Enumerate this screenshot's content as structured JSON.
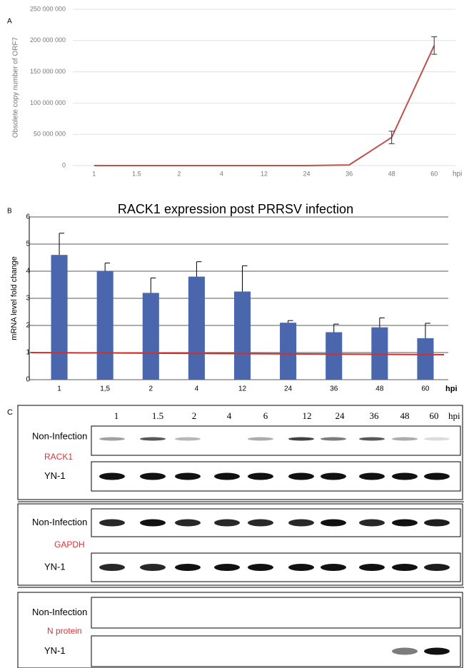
{
  "chart_data": [
    {
      "type": "line",
      "panel_label": "A",
      "y_label": "Obsolete copy number of ORF7",
      "x_label": "hpi",
      "color": "#c0504d",
      "categories": [
        "1",
        "1.5",
        "2",
        "4",
        "12",
        "24",
        "36",
        "48",
        "60"
      ],
      "values": [
        0,
        0,
        0,
        0,
        0,
        0,
        1000000,
        45000000,
        192000000
      ],
      "errors": [
        0,
        0,
        0,
        0,
        0,
        0,
        0,
        10000000,
        14000000
      ],
      "ylim": [
        0,
        250000000
      ],
      "yticks": [
        0,
        {
          "value": 50000000,
          "label": "50 000 000"
        },
        {
          "value": 100000000,
          "label": "100 000 000"
        },
        {
          "value": 150000000,
          "label": "150 000 000"
        },
        {
          "value": 200000000,
          "label": "200 000 000"
        },
        {
          "value": 250000000,
          "label": "250 000 000"
        }
      ],
      "grid": true
    },
    {
      "type": "bar",
      "panel_label": "B",
      "title": "RACK1 expression post PRRSV infection",
      "y_label": "mRNA  level  fold  change",
      "x_label": "hpi",
      "color": "#4a66ac",
      "categories": [
        "1",
        "1,5",
        "2",
        "4",
        "12",
        "24",
        "36",
        "48",
        "60"
      ],
      "values": [
        4.6,
        4.0,
        3.2,
        3.8,
        3.25,
        2.1,
        1.75,
        1.93,
        1.53
      ],
      "errors": [
        0.8,
        0.3,
        0.55,
        0.55,
        0.95,
        0.08,
        0.3,
        0.35,
        0.55
      ],
      "reference_line": 1,
      "reference_color": "#d03030",
      "ylim": [
        0,
        6
      ],
      "yticks": [
        0,
        1,
        2,
        3,
        4,
        5,
        6
      ],
      "grid": true
    }
  ],
  "blot": {
    "panel_label": "C",
    "lanes": [
      "1",
      "1.5",
      "2",
      "4",
      "6",
      "12",
      "24",
      "36",
      "48",
      "60"
    ],
    "lane_unit": "hpi",
    "groups": [
      {
        "name": "RACK1",
        "rows": [
          "Non-Infection",
          "YN-1"
        ]
      },
      {
        "name": "GAPDH",
        "rows": [
          "Non-Infection",
          "YN-1"
        ]
      },
      {
        "name": "N protein",
        "rows": [
          "Non-Infection",
          "YN-1"
        ]
      }
    ]
  }
}
